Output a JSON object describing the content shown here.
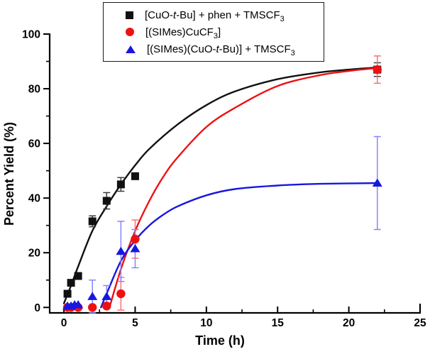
{
  "page": {
    "background": "#ffffff"
  },
  "axes": {
    "x": {
      "label": "Time (h)"
    },
    "y": {
      "label": "Percent Yield (%)"
    }
  },
  "legend": {
    "position": "top-center",
    "items": [
      {
        "id": "cuotbu-phen-tmscf3",
        "marker": "square",
        "color": "#111111",
        "segments": [
          {
            "t": "[CuO-"
          },
          {
            "t": "t",
            "i": true
          },
          {
            "t": "-Bu] + phen + TMSCF"
          },
          {
            "t": "3",
            "sub": true
          }
        ]
      },
      {
        "id": "simes-cucf3",
        "marker": "circle",
        "color": "#ee1111",
        "segments": [
          {
            "t": "[(SIMes)CuCF"
          },
          {
            "t": "3",
            "sub": true
          },
          {
            "t": "]"
          }
        ]
      },
      {
        "id": "simes-cuotbu-tmscf3",
        "marker": "triangle",
        "color": "#1717e0",
        "segments": [
          {
            "t": "[(SIMes)(CuO-"
          },
          {
            "t": "t",
            "i": true
          },
          {
            "t": "-Bu)] + TMSCF"
          },
          {
            "t": "3",
            "sub": true
          }
        ]
      }
    ]
  },
  "chart_data": {
    "type": "scatter",
    "title": "",
    "xlabel": "Time (h)",
    "ylabel": "Percent Yield (%)",
    "xlim": [
      -1,
      25
    ],
    "ylim": [
      -2,
      100
    ],
    "x_major_ticks": [
      0,
      5,
      10,
      15,
      20,
      25
    ],
    "x_minor_ticks": [
      2.5,
      7.5,
      12.5,
      17.5,
      22.5
    ],
    "y_major_ticks": [
      0,
      20,
      40,
      60,
      80,
      100
    ],
    "y_minor_ticks": [
      10,
      30,
      50,
      70,
      90
    ],
    "grid": false,
    "legend_position": "top-center",
    "series": [
      {
        "name": "[CuO-t-Bu] + phen + TMSCF3",
        "marker": "square",
        "color": "#111111",
        "err_color": "#3d3d3d",
        "points": [
          {
            "x": 0.25,
            "y": 5,
            "err": 0
          },
          {
            "x": 0.5,
            "y": 9,
            "err": 0
          },
          {
            "x": 1,
            "y": 11.5,
            "err": 0
          },
          {
            "x": 2,
            "y": 31.5,
            "err": 2
          },
          {
            "x": 3,
            "y": 39,
            "err": 3
          },
          {
            "x": 4,
            "y": 45,
            "err": 2.5
          },
          {
            "x": 5,
            "y": 48,
            "err": 0
          },
          {
            "x": 22,
            "y": 87,
            "err": 2.5
          }
        ],
        "fit_curve": [
          [
            0,
            1.5
          ],
          [
            0.5,
            8
          ],
          [
            1,
            15
          ],
          [
            2,
            28
          ],
          [
            3,
            37
          ],
          [
            4,
            45
          ],
          [
            5,
            52
          ],
          [
            6,
            58
          ],
          [
            8,
            67
          ],
          [
            10,
            74
          ],
          [
            12,
            79
          ],
          [
            15,
            83.5
          ],
          [
            18,
            86
          ],
          [
            20,
            87
          ],
          [
            22,
            87.8
          ]
        ]
      },
      {
        "name": "[(SIMes)CuCF3]",
        "marker": "circle",
        "color": "#ee1111",
        "err_color": "#ff7070",
        "points": [
          {
            "x": 0.25,
            "y": 0,
            "err": 0
          },
          {
            "x": 0.5,
            "y": 0,
            "err": 0
          },
          {
            "x": 1,
            "y": 0,
            "err": 0
          },
          {
            "x": 2,
            "y": 0,
            "err": 0
          },
          {
            "x": 3,
            "y": 0.5,
            "err": 0
          },
          {
            "x": 4,
            "y": 5,
            "err": 6
          },
          {
            "x": 5,
            "y": 25,
            "err": 7
          },
          {
            "x": 22,
            "y": 87,
            "err": 5
          }
        ],
        "fit_curve": [
          [
            3.2,
            0
          ],
          [
            4,
            14
          ],
          [
            5,
            28
          ],
          [
            6,
            39
          ],
          [
            7,
            48
          ],
          [
            8,
            55
          ],
          [
            10,
            66
          ],
          [
            12,
            73
          ],
          [
            15,
            81
          ],
          [
            18,
            85
          ],
          [
            20,
            86.5
          ],
          [
            22,
            87.6
          ]
        ]
      },
      {
        "name": "[(SIMes)(CuO-t-Bu)] + TMSCF3",
        "marker": "triangle",
        "color": "#1717e0",
        "err_color": "#8585ff",
        "points": [
          {
            "x": 0.25,
            "y": 0.5,
            "err": 0
          },
          {
            "x": 0.5,
            "y": 0.5,
            "err": 0
          },
          {
            "x": 0.75,
            "y": 1,
            "err": 0
          },
          {
            "x": 1,
            "y": 1,
            "err": 0
          },
          {
            "x": 2,
            "y": 4,
            "err": 6
          },
          {
            "x": 3,
            "y": 4,
            "err": 4
          },
          {
            "x": 4,
            "y": 20.5,
            "err": 11
          },
          {
            "x": 5,
            "y": 21.5,
            "err": 7
          },
          {
            "x": 22,
            "y": 45.5,
            "err": 17
          }
        ],
        "fit_curve": [
          [
            2.6,
            0
          ],
          [
            3,
            5
          ],
          [
            4,
            17
          ],
          [
            5,
            24.5
          ],
          [
            6,
            30
          ],
          [
            7,
            34
          ],
          [
            8,
            37
          ],
          [
            10,
            41
          ],
          [
            12,
            43.3
          ],
          [
            15,
            44.6
          ],
          [
            18,
            45.2
          ],
          [
            22,
            45.5
          ]
        ]
      }
    ]
  }
}
